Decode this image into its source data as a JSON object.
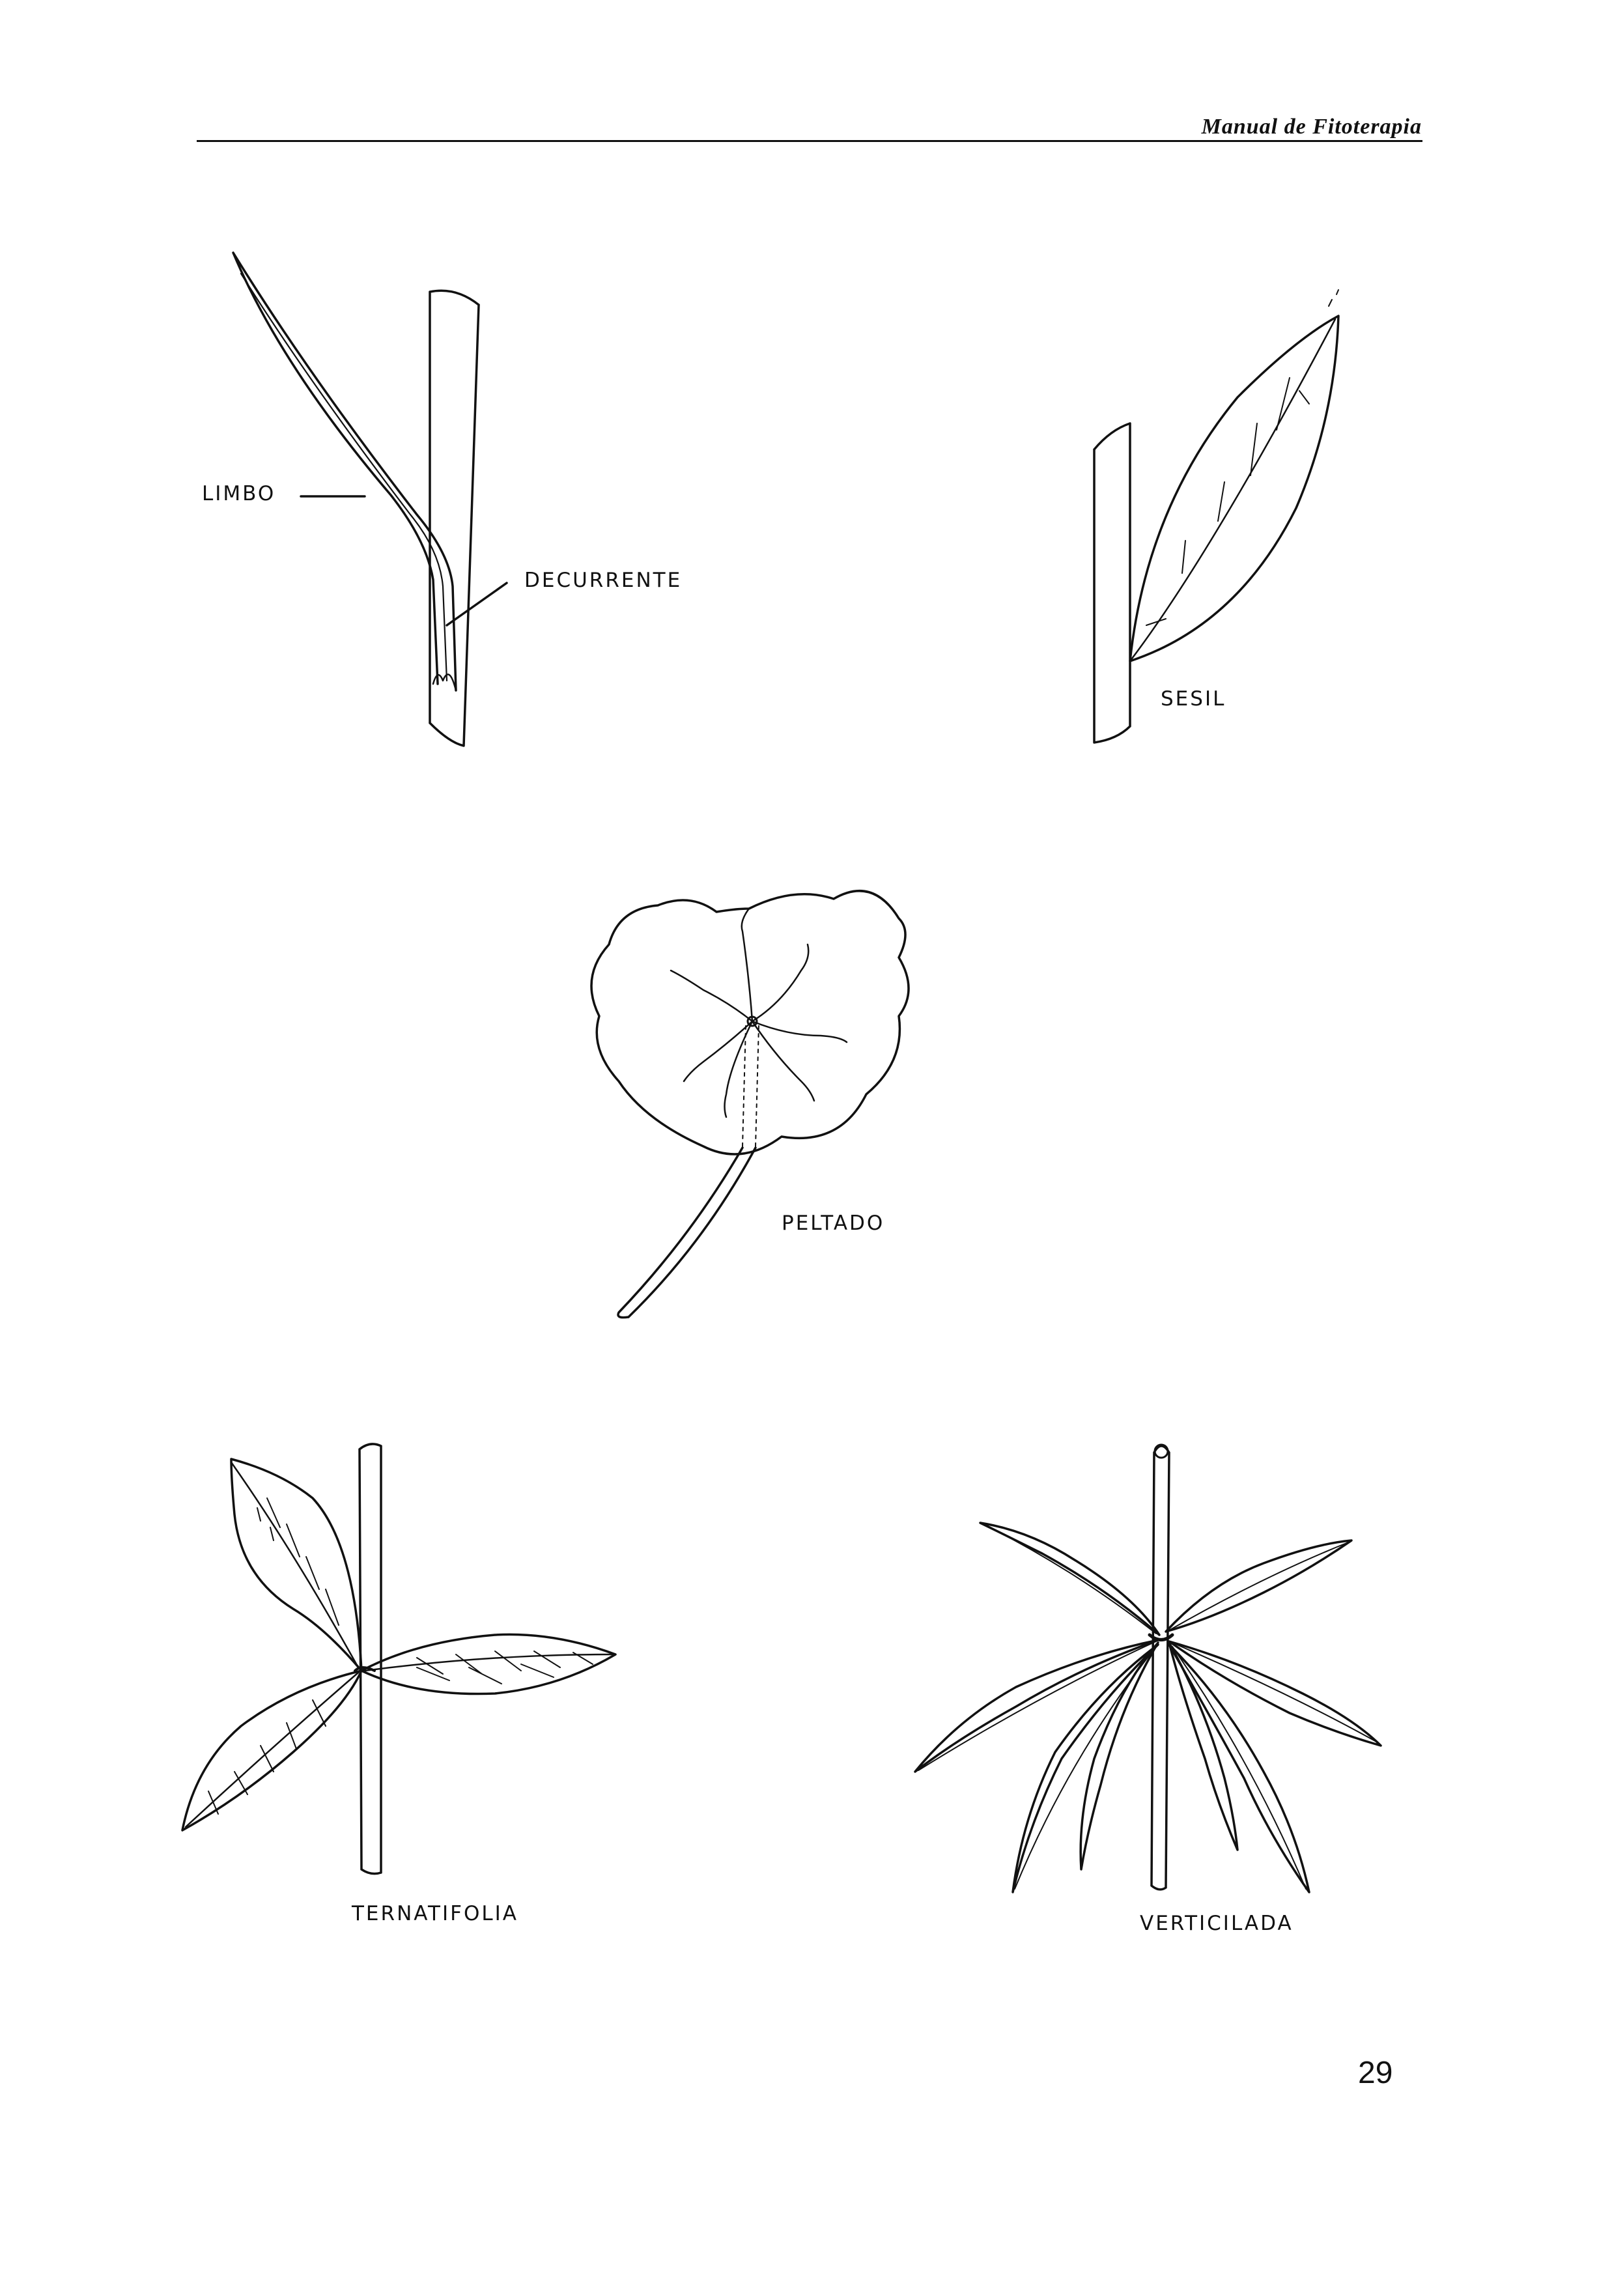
{
  "header": {
    "title": "Manual de Fitoterapia"
  },
  "figures": {
    "decurrente": {
      "label_limbo": "LIMBO",
      "label_decurrente": "DECURRENTE"
    },
    "sesil": {
      "label": "SESIL"
    },
    "peltado": {
      "label": "PELTADO"
    },
    "ternatifolia": {
      "label": "TERNATIFOLIA"
    },
    "verticilada": {
      "label": "VERTICILADA"
    }
  },
  "page_number": "29",
  "colors": {
    "ink": "#111111",
    "paper": "#ffffff"
  }
}
